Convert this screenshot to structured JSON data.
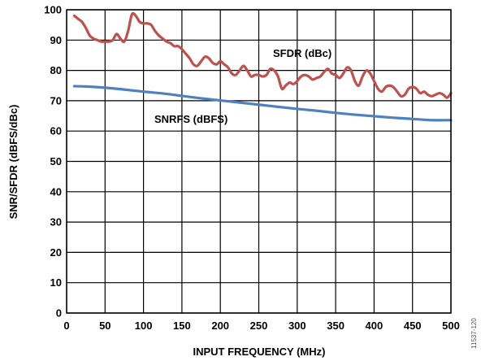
{
  "chart_data": {
    "type": "line",
    "xlabel": "INPUT FREQUENCY (MHz)",
    "ylabel": "SNR/SFDR (dBFS/dBc)",
    "xlim": [
      0,
      500
    ],
    "ylim": [
      0,
      100
    ],
    "x_ticks": [
      0,
      50,
      100,
      150,
      200,
      250,
      300,
      350,
      400,
      450,
      500
    ],
    "y_ticks": [
      0,
      10,
      20,
      30,
      40,
      50,
      60,
      70,
      80,
      90,
      100
    ],
    "grid": true,
    "figure_id": "11537-120",
    "series": [
      {
        "name": "SFDR (dBc)",
        "color": "#c0504d",
        "x": [
          10,
          15,
          20,
          25,
          30,
          35,
          40,
          45,
          50,
          55,
          60,
          65,
          70,
          75,
          80,
          85,
          90,
          95,
          100,
          105,
          110,
          115,
          120,
          125,
          130,
          135,
          140,
          145,
          150,
          155,
          160,
          165,
          170,
          175,
          180,
          185,
          190,
          195,
          200,
          205,
          210,
          215,
          220,
          225,
          230,
          235,
          240,
          245,
          250,
          255,
          260,
          265,
          270,
          275,
          280,
          285,
          290,
          295,
          300,
          305,
          310,
          315,
          320,
          325,
          330,
          335,
          340,
          345,
          350,
          355,
          360,
          365,
          370,
          375,
          380,
          385,
          390,
          395,
          400,
          405,
          410,
          415,
          420,
          425,
          430,
          435,
          440,
          445,
          450,
          455,
          460,
          465,
          470,
          475,
          480,
          485,
          490,
          495,
          500
        ],
        "values": [
          98,
          97,
          96,
          94,
          91.5,
          90.5,
          90,
          89.5,
          89.5,
          89.5,
          90,
          92,
          90.5,
          89.5,
          93,
          98.5,
          98,
          96,
          95.5,
          95.5,
          95,
          93,
          91.5,
          90.5,
          89.5,
          89,
          88,
          88,
          87,
          85.5,
          84,
          82,
          81.5,
          83,
          84.5,
          84,
          82.5,
          82,
          83,
          82,
          81,
          79,
          78.5,
          80,
          81.5,
          80,
          78,
          78.5,
          78.5,
          78,
          78.5,
          80.5,
          80,
          78,
          74,
          75,
          76,
          75.5,
          76.5,
          78,
          78.5,
          78,
          77,
          77.5,
          78,
          79.5,
          80.5,
          79,
          78.5,
          77.5,
          79,
          81,
          80,
          76.5,
          75,
          78,
          80,
          79,
          76.5,
          74,
          73,
          74.5,
          75,
          74.5,
          73,
          71.5,
          72,
          74,
          74.5,
          74,
          72.5,
          73,
          72,
          71.5,
          72,
          72.5,
          72,
          71,
          72.5
        ]
      },
      {
        "name": "SNRFS (dBFS)",
        "color": "#4f81bd",
        "x": [
          10,
          25,
          50,
          75,
          100,
          125,
          150,
          175,
          200,
          225,
          250,
          275,
          300,
          325,
          350,
          375,
          400,
          425,
          450,
          475,
          500
        ],
        "values": [
          74.8,
          74.7,
          74.3,
          73.7,
          73,
          72.4,
          71.6,
          70.8,
          70.1,
          69.4,
          68.7,
          68,
          67.3,
          66.7,
          66,
          65.4,
          64.9,
          64.4,
          64,
          63.6,
          63.6
        ]
      }
    ]
  }
}
